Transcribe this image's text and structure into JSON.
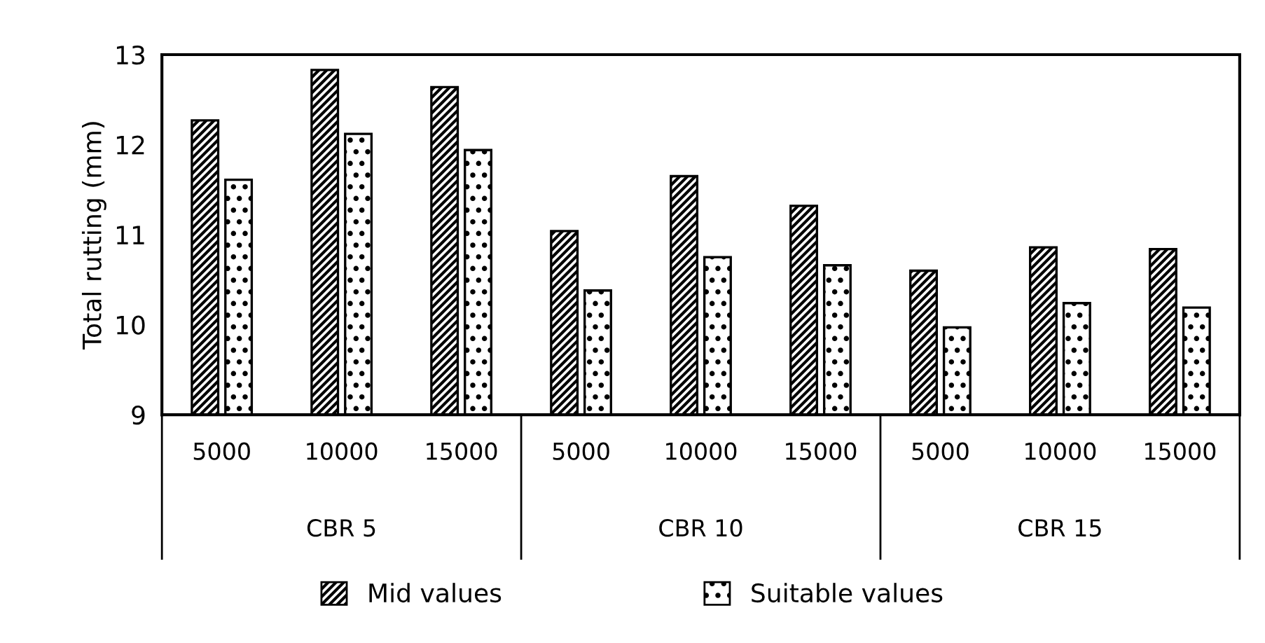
{
  "chart_data": {
    "type": "bar",
    "ylabel": "Total rutting (mm)",
    "categories": [
      "5000",
      "10000",
      "15000",
      "5000",
      "10000",
      "15000",
      "5000",
      "10000",
      "15000"
    ],
    "series": [
      {
        "name": "Mid values",
        "color": "#000000",
        "values": [
          12.27,
          12.83,
          12.64,
          11.04,
          11.65,
          11.32,
          10.6,
          10.86,
          10.84
        ]
      },
      {
        "name": "Suitable values",
        "color": "#000000",
        "values": [
          11.61,
          12.12,
          11.94,
          10.38,
          10.75,
          10.66,
          9.97,
          10.24,
          10.19
        ]
      }
    ],
    "annotations": [
      "CBR 5",
      "CBR 10",
      "CBR 15"
    ],
    "ylim": [
      9,
      13
    ],
    "yticks": [
      9,
      10,
      11,
      12,
      13
    ],
    "grid": false,
    "legend": "bottom"
  }
}
